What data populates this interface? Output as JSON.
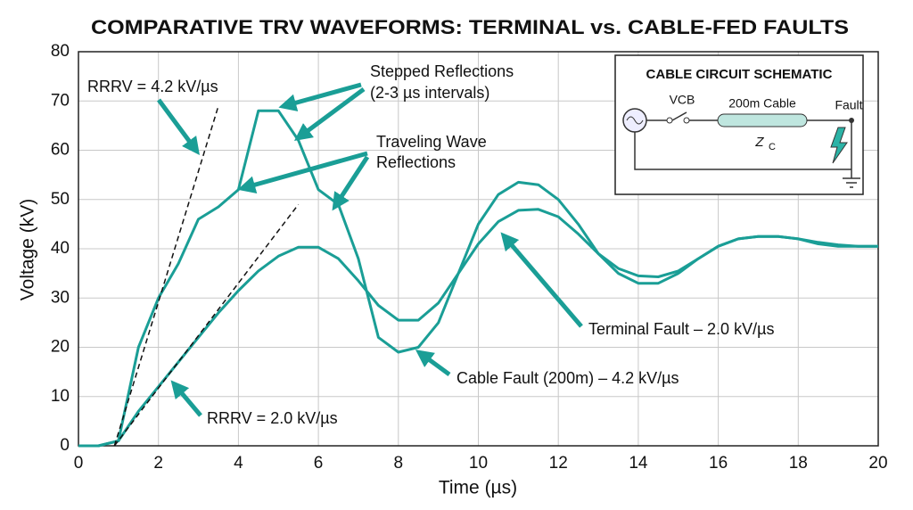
{
  "chart_data": {
    "type": "line",
    "title": "COMPARATIVE TRV WAVEFORMS: TERMINAL vs. CABLE-FED FAULTS",
    "xlabel": "Time (µs)",
    "ylabel": "Voltage (kV)",
    "x": [
      0,
      0.5,
      1,
      1.5,
      2,
      2.5,
      3,
      3.5,
      4,
      4.5,
      5,
      5.5,
      6,
      6.5,
      7,
      7.5,
      8,
      8.5,
      9,
      9.5,
      10,
      10.5,
      11,
      11.5,
      12,
      12.5,
      13,
      13.5,
      14,
      14.5,
      15,
      15.5,
      16,
      16.5,
      17,
      17.5,
      18,
      18.5,
      19,
      19.5,
      20
    ],
    "series": [
      {
        "name": "Terminal Fault – 2.0 kV/µs",
        "color": "#1a9e96",
        "values": [
          0,
          0,
          1,
          7,
          12,
          17,
          22,
          27,
          31.5,
          35.5,
          38.5,
          40.3,
          40.3,
          38,
          33.5,
          28.5,
          25.5,
          25.5,
          29,
          35,
          41,
          45.5,
          47.8,
          48,
          46.5,
          43,
          39,
          36,
          34.5,
          34.3,
          35.5,
          38,
          40.5,
          42,
          42.5,
          42.5,
          42,
          41.3,
          40.8,
          40.5,
          40.5
        ]
      },
      {
        "name": "Cable Fault (200m) – 4.2 kV/µs",
        "color": "#1a9e96",
        "values": [
          0,
          0,
          1,
          20,
          30,
          37,
          46,
          48.5,
          52,
          68,
          68,
          62,
          52,
          49,
          38,
          22,
          19,
          20,
          25,
          35,
          45,
          51,
          53.5,
          53,
          50,
          45,
          39,
          35,
          33,
          33,
          35,
          38,
          40.5,
          42,
          42.5,
          42.5,
          42,
          41,
          40.5,
          40.5,
          40.5
        ]
      }
    ],
    "reference_lines": [
      {
        "label": "RRRV = 4.2 kV/µs",
        "x": [
          0.9,
          3.5
        ],
        "y": [
          0,
          69
        ]
      },
      {
        "label": "RRRV = 2.0 kV/µs",
        "x": [
          0.9,
          5.5
        ],
        "y": [
          0,
          49
        ]
      }
    ],
    "annotations": [
      "Stepped Reflections",
      "(2-3 µs intervals)",
      "Traveling Wave",
      "Reflections"
    ],
    "xlim": [
      0,
      20
    ],
    "xticks": [
      0,
      2,
      4,
      6,
      8,
      10,
      12,
      14,
      16,
      18,
      20
    ],
    "ylim": [
      0,
      80
    ],
    "yticks": [
      0,
      10,
      20,
      30,
      40,
      50,
      60,
      70,
      80
    ],
    "grid": true
  },
  "inset": {
    "title": "CABLE CIRCUIT SCHEMATIC",
    "breaker": "VCB",
    "cable": "200m Cable",
    "impedance": "Z",
    "impedance_sub": "C",
    "fault": "Fault"
  }
}
